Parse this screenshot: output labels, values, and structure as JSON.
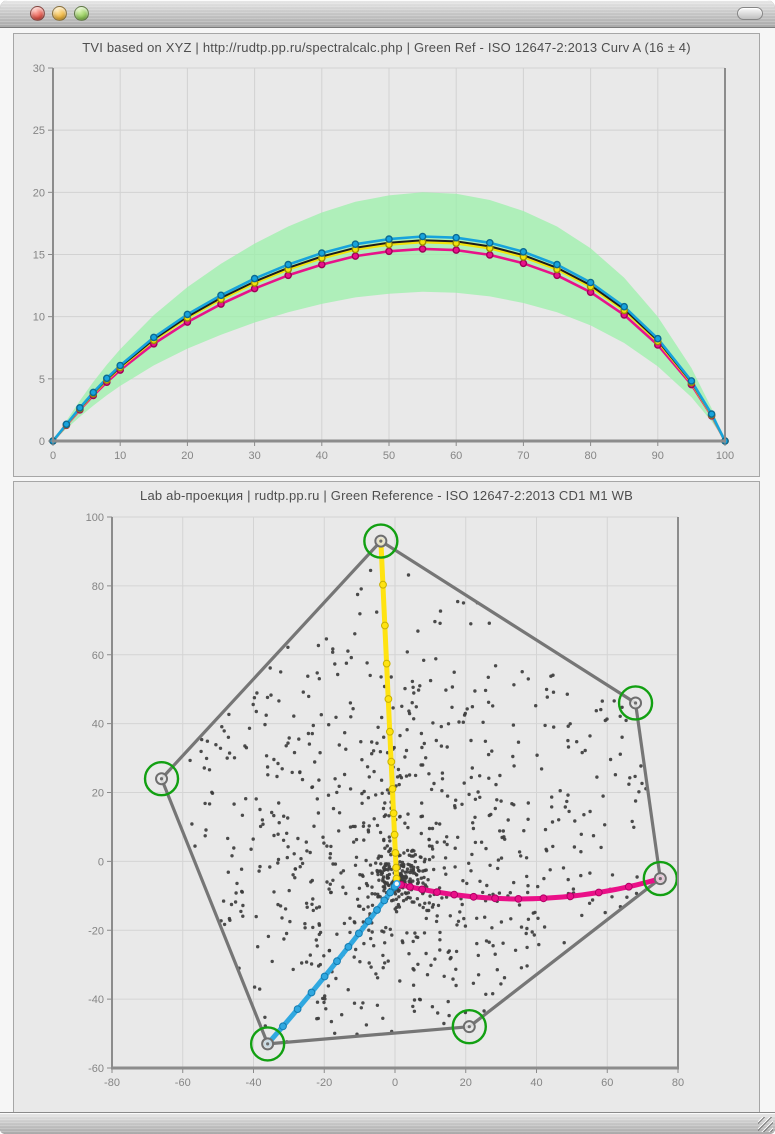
{
  "window": {
    "close_button": "close",
    "minimize_button": "minimize",
    "zoom_button": "zoom",
    "toolbar_pill": "toolbar-toggle"
  },
  "chart_data": [
    {
      "type": "line",
      "title": "TVI based on XYZ | http://rudtp.pp.ru/spectralcalc.php | Green Ref - ISO 12647-2:2013 Curv A (16 ± 4)",
      "xlabel": "",
      "ylabel": "",
      "xlim": [
        0,
        100
      ],
      "ylim": [
        0,
        30
      ],
      "xticks": [
        0,
        10,
        20,
        30,
        40,
        50,
        60,
        70,
        80,
        90,
        100
      ],
      "yticks": [
        0,
        5,
        10,
        15,
        20,
        25,
        30
      ],
      "grid_color": "#d2d2d2",
      "x": [
        0,
        2,
        4,
        6,
        8,
        10,
        15,
        20,
        25,
        30,
        35,
        40,
        45,
        50,
        55,
        60,
        65,
        70,
        75,
        80,
        85,
        90,
        95,
        98,
        100
      ],
      "band": {
        "name": "tolerance-band-16-plus-minus-4",
        "color": "#9bf0a9",
        "opacity": 0.75,
        "upper": [
          0,
          1.63,
          3.25,
          4.75,
          6.13,
          7.38,
          10.13,
          12.38,
          14.25,
          15.88,
          17.25,
          18.38,
          19.25,
          19.75,
          20,
          19.88,
          19.38,
          18.5,
          17.25,
          15.5,
          13.13,
          10,
          5.88,
          2.63,
          0
        ],
        "lower": [
          0,
          0.98,
          1.95,
          2.85,
          3.68,
          4.43,
          6.08,
          7.43,
          8.55,
          9.53,
          10.35,
          11.03,
          11.55,
          11.85,
          12,
          11.93,
          11.63,
          11.1,
          10.35,
          9.3,
          7.88,
          6,
          3.53,
          1.58,
          0
        ]
      },
      "series": [
        {
          "name": "magenta",
          "color": "#e8128a",
          "marker_ring": "#a00058",
          "width": 2.6,
          "markers": true,
          "values": [
            0,
            1.26,
            2.51,
            3.67,
            4.73,
            5.7,
            7.82,
            9.56,
            11.01,
            12.26,
            13.33,
            14.19,
            14.87,
            15.26,
            15.45,
            15.35,
            14.97,
            14.29,
            13.33,
            11.97,
            10.14,
            7.72,
            4.54,
            2.03,
            0
          ]
        },
        {
          "name": "yellow",
          "color": "#f2e30c",
          "marker_ring": "#9c8e00",
          "width": 2.6,
          "markers": true,
          "values": [
            0,
            1.3,
            2.6,
            3.8,
            4.9,
            5.9,
            8.1,
            9.9,
            11.4,
            12.7,
            13.8,
            14.7,
            15.4,
            15.8,
            16.0,
            15.9,
            15.5,
            14.8,
            13.8,
            12.4,
            10.5,
            8.0,
            4.7,
            2.1,
            0
          ]
        },
        {
          "name": "black",
          "color": "#1d1d1d",
          "marker_ring": "#000000",
          "width": 2,
          "markers": false,
          "values": [
            0,
            1.31,
            2.62,
            3.84,
            4.95,
            5.96,
            8.18,
            9.99,
            11.51,
            12.82,
            13.93,
            14.84,
            15.54,
            15.95,
            16.15,
            16.05,
            15.65,
            14.94,
            13.93,
            12.52,
            10.6,
            8.08,
            4.74,
            2.12,
            0
          ]
        },
        {
          "name": "cyan",
          "color": "#17a3dc",
          "marker_ring": "#0b6a93",
          "width": 2.6,
          "markers": true,
          "values": [
            0,
            1.34,
            2.67,
            3.91,
            5.04,
            6.07,
            8.33,
            10.18,
            11.72,
            13.06,
            14.19,
            15.11,
            15.83,
            16.24,
            16.45,
            16.35,
            15.94,
            15.22,
            14.19,
            12.75,
            10.8,
            8.23,
            4.83,
            2.16,
            0
          ]
        }
      ]
    },
    {
      "type": "scatter",
      "title": "Lab ab-проекция | rudtp.pp.ru | Green Reference - ISO 12647-2:2013 CD1 M1 WB",
      "xlabel": "",
      "ylabel": "",
      "xlim": [
        -80,
        80
      ],
      "ylim": [
        -60,
        100
      ],
      "xticks": [
        -80,
        -60,
        -40,
        -20,
        0,
        20,
        40,
        60,
        80
      ],
      "yticks": [
        -60,
        -40,
        -20,
        0,
        20,
        40,
        60,
        80,
        100
      ],
      "grid_color": "#d4d4d4",
      "gamut": {
        "vertices": [
          [
            -4,
            93
          ],
          [
            68,
            46
          ],
          [
            75,
            -5
          ],
          [
            21,
            -48
          ],
          [
            -36,
            -53
          ],
          [
            -66,
            24
          ]
        ],
        "vertex_names": [
          "yellow",
          "red",
          "magenta",
          "blue",
          "cyan",
          "green"
        ],
        "color": "#767676",
        "vertex_ring_color": "#6e6e6e",
        "highlight_color": "#12a012",
        "highlight_radius_px": 16.5
      },
      "center": [
        0.5,
        -6.5
      ],
      "ramps": [
        {
          "name": "yellow-ramp",
          "color": "#ffe311",
          "dot_ring": "#c7b000",
          "from": [
            0.5,
            -6.5
          ],
          "ctrl": [
            -1.5,
            40
          ],
          "to": [
            -4,
            93
          ],
          "dots": 13
        },
        {
          "name": "cyan-ramp",
          "color": "#30a8e0",
          "dot_ring": "#147bb0",
          "from": [
            0.5,
            -6.5
          ],
          "ctrl": [
            -18,
            -32
          ],
          "to": [
            -36,
            -53
          ],
          "dots": 13
        },
        {
          "name": "magenta-ramp",
          "color": "#ea1088",
          "dot_ring": "#b00066",
          "from": [
            0.5,
            -6.5
          ],
          "ctrl": [
            38,
            -16
          ],
          "to": [
            75,
            -5
          ],
          "dots": 13
        }
      ],
      "scatter": {
        "description": "≈950 measured patch points, dense cluster near neutral axis, spread across gamut hexagon",
        "count": 950,
        "seed": 7,
        "dot_color": "#3c3c3c",
        "dot_radius": 1.7,
        "clusters": [
          {
            "type": "gauss",
            "weight": 0.14,
            "cx": 0.8,
            "cy": -4.5,
            "sx": 3.5,
            "sy": 3.5
          },
          {
            "type": "gauss",
            "weight": 0.44,
            "cx": 3,
            "cy": -2,
            "sx": 26,
            "sy": 27
          },
          {
            "type": "uniform",
            "weight": 0.42
          }
        ]
      }
    }
  ]
}
